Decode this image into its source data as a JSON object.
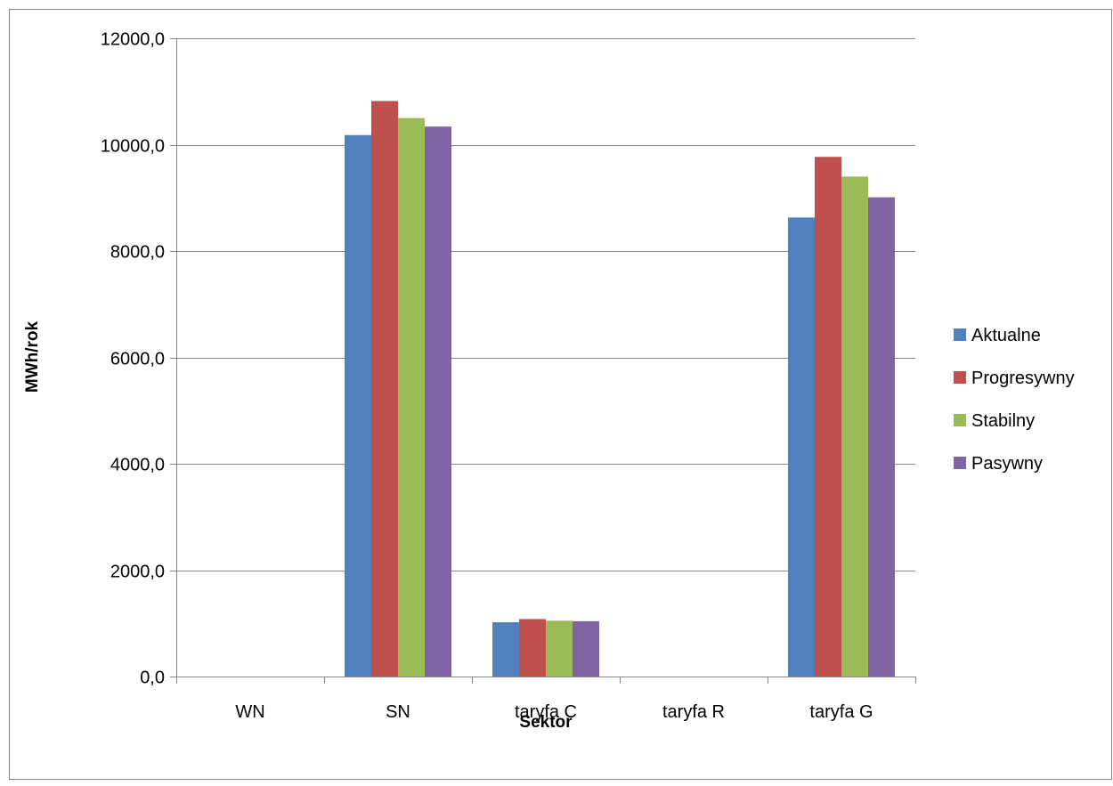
{
  "chart_data": {
    "type": "bar",
    "title": "",
    "xlabel": "Sektor",
    "ylabel": "MWh/rok",
    "categories": [
      "WN",
      "SN",
      "taryfa C",
      "taryfa R",
      "taryfa G"
    ],
    "series": [
      {
        "name": "Aktualne",
        "color": "#4F81BD",
        "values": [
          0,
          10180,
          1020,
          0,
          8630
        ]
      },
      {
        "name": "Progresywny",
        "color": "#C0504D",
        "values": [
          0,
          10820,
          1080,
          0,
          9770
        ]
      },
      {
        "name": "Stabilny",
        "color": "#9BBB59",
        "values": [
          0,
          10500,
          1050,
          0,
          9400
        ]
      },
      {
        "name": "Pasywny",
        "color": "#8064A2",
        "values": [
          0,
          10340,
          1040,
          0,
          9010
        ]
      }
    ],
    "ylim": [
      0,
      12000
    ],
    "yticks": [
      0,
      2000,
      4000,
      6000,
      8000,
      10000,
      12000
    ],
    "ytick_labels": [
      "0,0",
      "2000,0",
      "4000,0",
      "6000,0",
      "8000,0",
      "10000,0",
      "12000,0"
    ],
    "grid": true,
    "legend_position": "right",
    "gridline_color": "#868686",
    "axis_color": "#868686",
    "frame_color": "#868686"
  }
}
